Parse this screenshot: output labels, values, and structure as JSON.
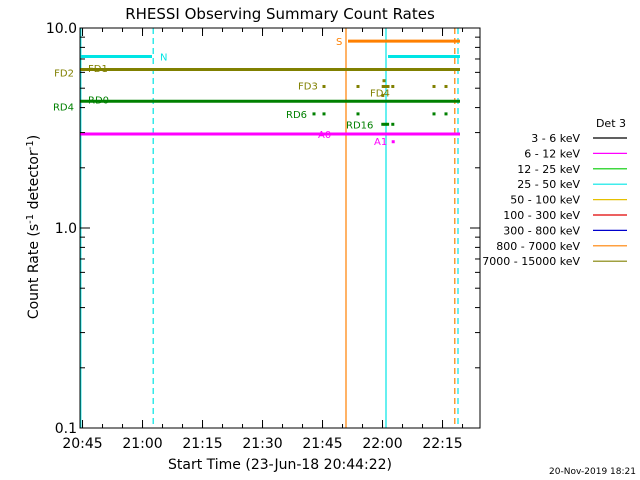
{
  "chart_data": {
    "type": "line",
    "title": "RHESSI Observing Summary Count Rates",
    "xlabel": "Start Time (23-Jun-18 20:44:22)",
    "ylabel_main": "Count Rate (s",
    "ylabel_sup1": "-1",
    "ylabel_mid": " detector",
    "ylabel_sup2": "-1",
    "ylabel_end": ")",
    "yscale": "log",
    "ylim": [
      0.1,
      10.0
    ],
    "xlim_minutes": [
      0,
      100
    ],
    "x_ticks": [
      {
        "m": 0.63,
        "label": "20:45"
      },
      {
        "m": 15.63,
        "label": "21:00"
      },
      {
        "m": 30.63,
        "label": "21:15"
      },
      {
        "m": 45.63,
        "label": "21:30"
      },
      {
        "m": 60.63,
        "label": "21:45"
      },
      {
        "m": 75.63,
        "label": "22:00"
      },
      {
        "m": 90.63,
        "label": "22:15"
      }
    ],
    "y_ticks": [
      {
        "v": 0.1,
        "label": "0.1"
      },
      {
        "v": 1.0,
        "label": "1.0"
      },
      {
        "v": 10.0,
        "label": "10.0"
      }
    ],
    "legend": {
      "title": "Det 3",
      "placement": "right",
      "entries": [
        {
          "label": "3 - 6 keV",
          "color": "#000000"
        },
        {
          "label": "6 - 12 keV",
          "color": "#ff00ff"
        },
        {
          "label": "12 - 25 keV",
          "color": "#00cc00"
        },
        {
          "label": "25 - 50 keV",
          "color": "#00e5e5"
        },
        {
          "label": "50 - 100 keV",
          "color": "#e5c000"
        },
        {
          "label": "100 - 300 keV",
          "color": "#e00000"
        },
        {
          "label": "300 - 800 keV",
          "color": "#0000cc"
        },
        {
          "label": "800 - 7000 keV",
          "color": "#ff8000"
        },
        {
          "label": "7000 - 15000 keV",
          "color": "#808000"
        }
      ]
    },
    "series": [
      {
        "color": "#808000",
        "y": 6.2,
        "x": [
          0,
          95
        ],
        "width": 3
      },
      {
        "color": "#008000",
        "y": 4.3,
        "x": [
          0,
          95
        ],
        "width": 3
      },
      {
        "color": "#ff00ff",
        "y": 2.95,
        "x": [
          0,
          95
        ],
        "width": 3
      },
      {
        "color": "#00e5e5",
        "y": 7.2,
        "x": [
          0,
          18
        ],
        "width": 3
      },
      {
        "color": "#00e5e5",
        "y": 7.2,
        "x": [
          77,
          95
        ],
        "width": 3
      },
      {
        "color": "#ff8000",
        "y": 8.6,
        "x": [
          67,
          95
        ],
        "width": 3
      }
    ],
    "vlines": [
      {
        "color": "#00e5e5",
        "x": 0.2,
        "dash": false
      },
      {
        "color": "#00e5e5",
        "x": 18.3,
        "dash": true
      },
      {
        "color": "#ff8000",
        "x": 66.5,
        "dash": false
      },
      {
        "color": "#00e5e5",
        "x": 76.5,
        "dash": false
      },
      {
        "color": "#ff8000",
        "x": 93.7,
        "dash": true
      },
      {
        "color": "#00e5e5",
        "x": 94.5,
        "dash": true
      }
    ],
    "dot_groups": [
      {
        "color": "#808000",
        "y": 5.1,
        "x": [
          61.0,
          69.5,
          75.8,
          76.4,
          77.0,
          78.2,
          88.5,
          91.5
        ]
      },
      {
        "color": "#808000",
        "y": 5.45,
        "x": [
          76.0
        ]
      },
      {
        "color": "#808000",
        "y": 4.6,
        "x": [
          75.7
        ]
      },
      {
        "color": "#008000",
        "y": 3.72,
        "x": [
          58.5,
          61.0,
          69.5,
          88.5,
          91.5
        ]
      },
      {
        "color": "#008000",
        "y": 3.3,
        "x": [
          75.7,
          76.3,
          76.9,
          78.2
        ]
      },
      {
        "color": "#ff00ff",
        "y": 2.7,
        "x": [
          78.3
        ]
      }
    ],
    "annotations": [
      {
        "text": "N",
        "x": 20.0,
        "y": 7.2,
        "color": "#00e5e5"
      },
      {
        "text": "S",
        "x": 64.0,
        "y": 8.6,
        "color": "#ff8000"
      },
      {
        "text": "FD1",
        "x": 2.0,
        "y": 6.3,
        "color": "#808000"
      },
      {
        "text": "FD3",
        "x": 54.5,
        "y": 5.15,
        "color": "#808000"
      },
      {
        "text": "FD4",
        "x": 72.5,
        "y": 4.75,
        "color": "#808000"
      },
      {
        "text": "RD0",
        "x": 2.0,
        "y": 4.4,
        "color": "#008000"
      },
      {
        "text": "RD6",
        "x": 51.5,
        "y": 3.72,
        "color": "#008000"
      },
      {
        "text": "RD16",
        "x": 66.5,
        "y": 3.3,
        "color": "#008000"
      },
      {
        "text": "A0",
        "x": 59.5,
        "y": 2.95,
        "color": "#ff00ff"
      },
      {
        "text": "A1",
        "x": 73.5,
        "y": 2.72,
        "color": "#ff00ff"
      }
    ],
    "left_labels": [
      {
        "text": "FD2",
        "y": 6.0,
        "color": "#808000"
      },
      {
        "text": "RD4",
        "y": 4.05,
        "color": "#008000"
      }
    ]
  },
  "footer_date": "20-Nov-2019 18:21"
}
